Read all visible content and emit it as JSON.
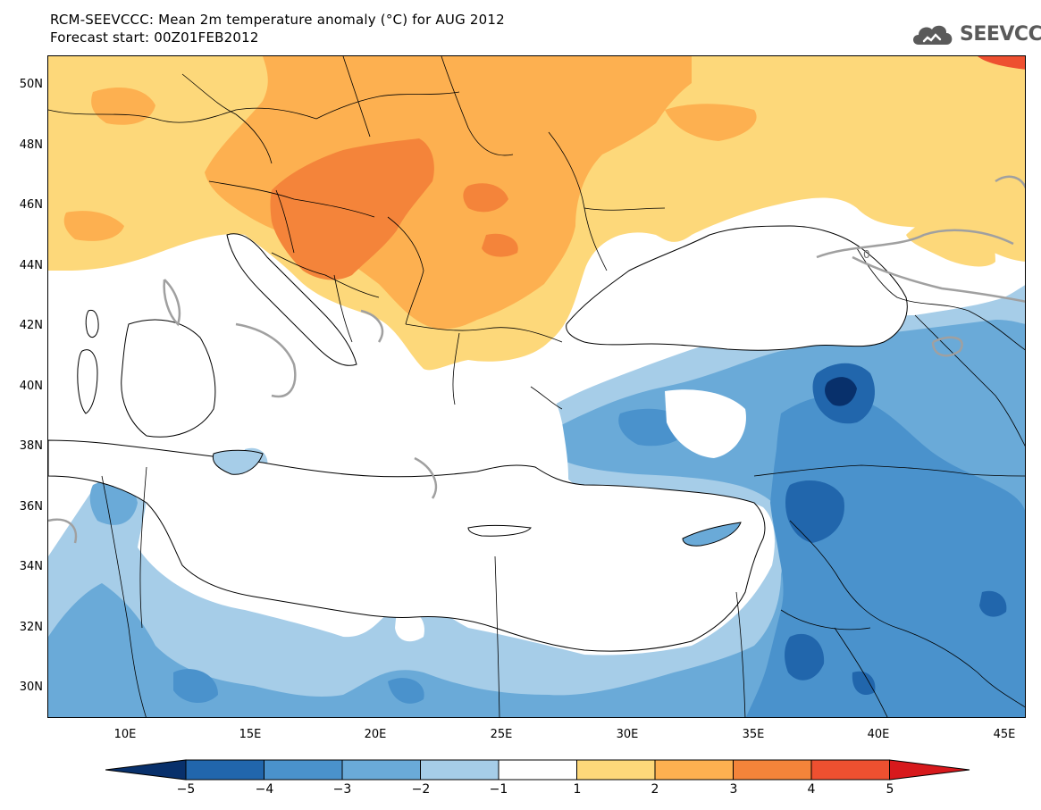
{
  "title": {
    "line1": "RCM-SEEVCCC: Mean 2m temperature anomaly (°C) for AUG 2012",
    "line2": "Forecast start: 00Z01FEB2012"
  },
  "logo": {
    "text": "SEEVCCC",
    "icon": "cloud-icon"
  },
  "map": {
    "lat_ticks": [
      "50N",
      "48N",
      "46N",
      "44N",
      "42N",
      "40N",
      "38N",
      "36N",
      "34N",
      "32N",
      "30N"
    ],
    "lon_ticks": [
      "10E",
      "15E",
      "20E",
      "25E",
      "30E",
      "35E",
      "40E",
      "45E"
    ],
    "contour_label": "0",
    "colors": {
      "neg5": "#08306b",
      "neg4": "#2166ac",
      "neg3": "#4a92cc",
      "neg2": "#6aaad8",
      "neg1": "#a6cde8",
      "zero": "#ffffff",
      "pos1": "#fdd87a",
      "pos2": "#fdb050",
      "pos3": "#f4843a",
      "pos4": "#ee5030",
      "pos5": "#d7191c"
    }
  },
  "colorbar": {
    "labels": [
      "−5",
      "−4",
      "−3",
      "−2",
      "−1",
      "1",
      "2",
      "3",
      "4",
      "5"
    ]
  }
}
